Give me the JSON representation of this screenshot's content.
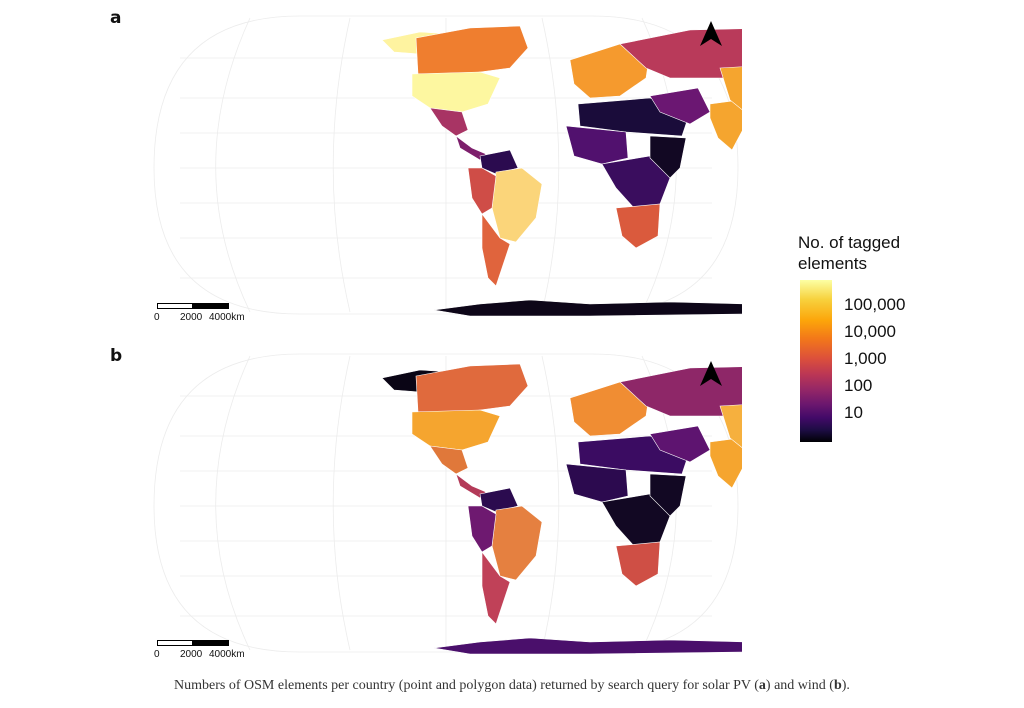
{
  "panels": [
    {
      "label": "a",
      "theme": "solar PV"
    },
    {
      "label": "b",
      "theme": "wind"
    }
  ],
  "scalebar": {
    "ticks": [
      "0",
      "2000",
      "4000km"
    ]
  },
  "legend": {
    "title": "No. of tagged elements",
    "ticks": [
      "100,000",
      "10,000",
      "1,000",
      "100",
      "10"
    ],
    "colormap": "inferno",
    "colors": [
      "#fcffa4",
      "#fca50a",
      "#dd513a",
      "#932667",
      "#420a68",
      "#000004"
    ]
  },
  "caption": {
    "text_before": "Numbers of OSM elements per country (point and polygon data) returned by search query for solar PV (",
    "a": "a",
    "mid": ") and wind (",
    "b": "b",
    "end": ")."
  },
  "map_data": {
    "projection": "Eckert/Robinson-like pseudocylindrical world map",
    "solar": {
      "north_america": "#fdf7a0",
      "canada": "#ef7e2f",
      "greenland": "#fef3a0",
      "mexico": "#a83464",
      "central_america": "#7d1f6c",
      "brazil": "#fbd57a",
      "south_america_west": "#cf4d47",
      "colombia_venezuela": "#2b0b4f",
      "argentina_chile": "#e0643d",
      "europe": "#f59a2e",
      "russia": "#b93a5a",
      "north_africa": "#1a0c3a",
      "west_africa": "#51116e",
      "east_africa": "#120823",
      "southern_africa": "#da5a3d",
      "central_africa": "#3a0d5e",
      "middle_east": "#6b1772",
      "india": "#f5a52f",
      "china": "#f5a52f",
      "southeast_asia": "#8e2467",
      "indonesia": "#c24055",
      "australia": "#ef8a3e",
      "new_zealand": "#6f1a6e",
      "antarctica": "#0d0618"
    },
    "wind": {
      "north_america": "#f5a52f",
      "canada": "#e06a3d",
      "greenland": "#0a0515",
      "mexico": "#e0783a",
      "central_america": "#b33a58",
      "brazil": "#e58040",
      "south_america_west": "#6e1970",
      "colombia_venezuela": "#2b0b4f",
      "argentina_chile": "#c04158",
      "europe": "#f08d33",
      "russia": "#8e2768",
      "north_africa": "#3b0c62",
      "west_africa": "#2c0a4f",
      "east_africa": "#120823",
      "southern_africa": "#cf4f45",
      "central_africa": "#120823",
      "middle_east": "#5e1470",
      "india": "#f5a52f",
      "china": "#f6b03e",
      "southeast_asia": "#a52f5f",
      "indonesia": "#7a1f6b",
      "australia": "#e6653a",
      "new_zealand": "#cf4d47",
      "antarctica": "#4a0f6b"
    }
  }
}
